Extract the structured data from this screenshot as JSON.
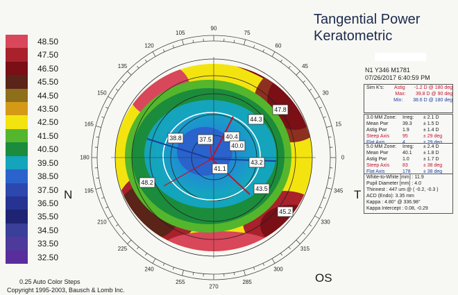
{
  "titles": {
    "line1": "Tangential Power",
    "line2": "Keratometric"
  },
  "header": {
    "patient": "N1 Y346 M1781",
    "datetime": "07/26/2017 6:40:59 PM"
  },
  "scale": {
    "labels": [
      "48.50",
      "47.50",
      "46.50",
      "45.50",
      "44.50",
      "43.50",
      "42.50",
      "41.50",
      "40.50",
      "39.50",
      "38.50",
      "37.50",
      "36.50",
      "35.50",
      "34.50",
      "33.50",
      "32.50"
    ],
    "colors": [
      "#d8475a",
      "#a8212b",
      "#7a0f16",
      "#5a2418",
      "#8d6f1b",
      "#d49a16",
      "#f3e40f",
      "#54b62c",
      "#1b8c3b",
      "#14a4bc",
      "#2a63cc",
      "#2c47ad",
      "#263392",
      "#1e2473",
      "#3a3f99",
      "#4d3a9a",
      "#5a2d9d"
    ],
    "footer_steps": "0.25 Auto Color Steps",
    "copyright": "Copyright 1995-2003, Bausch & Lomb Inc."
  },
  "orientation": {
    "left": "N",
    "right": "T",
    "eye": "OS"
  },
  "axis_labels": [
    "0",
    "15",
    "30",
    "45",
    "60",
    "75",
    "90",
    "105",
    "120",
    "135",
    "150",
    "165",
    "180",
    "195",
    "210",
    "225",
    "240",
    "255",
    "270",
    "285",
    "300",
    "315",
    "330",
    "345"
  ],
  "map_values": [
    "38.8",
    "37.5",
    "40.4",
    "40.0",
    "44.3",
    "47.8",
    "41.1",
    "43.2",
    "43.5",
    "48.2",
    "45.2"
  ],
  "simk": {
    "title": "Sim K's:",
    "astig_label": "Astig",
    "astig_value": "-1.2 D",
    "astig_axis": "@ 180 deg",
    "max_label": "Max:",
    "max_value": "39.8 D",
    "max_axis": "@ 90 deg",
    "min_label": "Min:",
    "min_value": "38.6 D",
    "min_axis": "@ 180 deg"
  },
  "zone3": {
    "title": "3.0 MM Zone:",
    "irreg_label": "Irreg:",
    "irreg_value": "± 2.1 D",
    "mean_label": "Mean Pwr",
    "mean_value": "39.3",
    "mean_err": "± 1.5 D",
    "astig_label": "Astig Pwr",
    "astig_value": "1.9",
    "astig_err": "± 1.4 D",
    "steep_label": "Steep Axis",
    "steep_value": "95",
    "steep_err": "± 29 deg",
    "flat_label": "Flat Axis",
    "flat_value": "4",
    "flat_err": "± 29 deg"
  },
  "zone5": {
    "title": "5.0 MM Zone:",
    "irreg_label": "Irreg:",
    "irreg_value": "± 2.4 D",
    "mean_label": "Mean Pwr",
    "mean_value": "40.1",
    "mean_err": "± 1.8 D",
    "astig_label": "Astig Pwr",
    "astig_value": "1.0",
    "astig_err": "± 1.7 D",
    "steep_label": "Steep Axis",
    "steep_value": "83",
    "steep_err": "± 38 deg",
    "flat_label": "Flat Axis",
    "flat_value": "178",
    "flat_err": "± 38 deg"
  },
  "misc": [
    "White-to-White [mm] : 11.9",
    "Pupil Diameter [mm] : 4.0",
    "Thinnest : 447 um @ ( -0.2, -0.3 )",
    "ACD (Endo): 3.35 mm",
    "Kappa : 4.80° @ 336.98°",
    "Kappa Intercept : 0.08, -0.29"
  ]
}
